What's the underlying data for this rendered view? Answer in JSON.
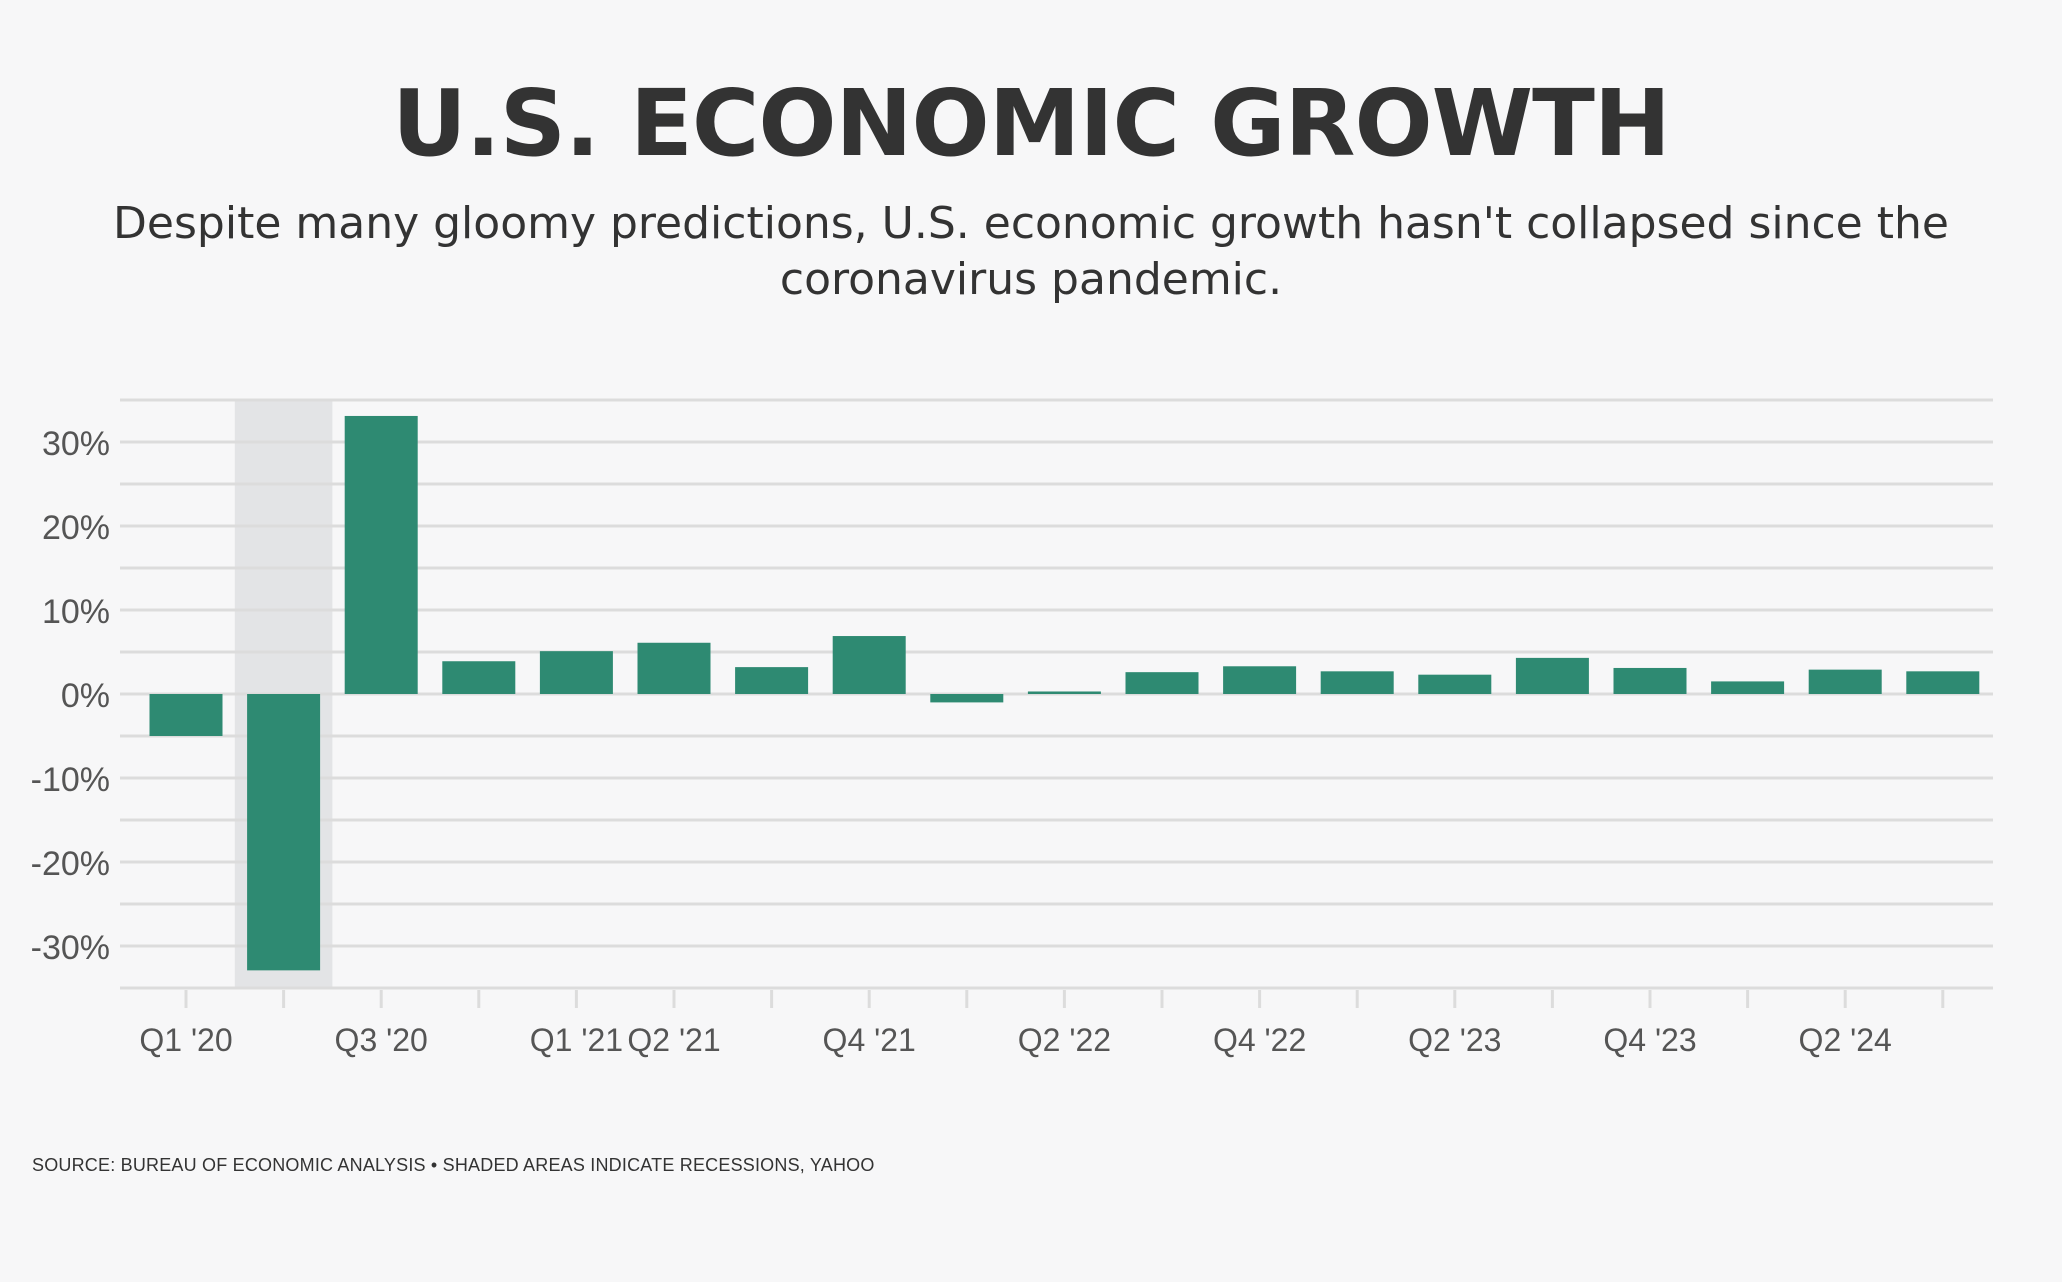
{
  "title": "U.S. ECONOMIC GROWTH",
  "subtitle": "Despite many gloomy predictions, U.S. economic growth hasn't collapsed since the coronavirus pandemic.",
  "source": "SOURCE: BUREAU OF ECONOMIC ANALYSIS • SHADED AREAS INDICATE RECESSIONS, YAHOO",
  "colors": {
    "bar": "#2e8a72",
    "recession_shade": "#e3e4e6",
    "grid": "#dcdcdc",
    "text": "#333333",
    "axis_text": "#555555"
  },
  "chart_data": {
    "type": "bar",
    "categories": [
      "Q1 '20",
      "Q2 '20",
      "Q3 '20",
      "Q4 '20",
      "Q1 '21",
      "Q2 '21",
      "Q3 '21",
      "Q4 '21",
      "Q1 '22",
      "Q2 '22",
      "Q3 '22",
      "Q4 '22",
      "Q1 '23",
      "Q2 '23",
      "Q3 '23",
      "Q4 '23",
      "Q1 '24",
      "Q2 '24",
      "Q3 '24"
    ],
    "values": [
      -5.0,
      -32.9,
      33.1,
      3.9,
      5.1,
      6.1,
      3.2,
      6.9,
      -1.0,
      0.3,
      2.6,
      3.3,
      2.7,
      2.3,
      4.3,
      3.1,
      1.5,
      2.9,
      2.7
    ],
    "tick_labels": [
      "Q1 '20",
      "",
      "Q3 '20",
      "",
      "Q1 '21",
      "Q2 '21",
      "",
      "Q4 '21",
      "",
      "Q2 '22",
      "",
      "Q4 '22",
      "",
      "Q2 '23",
      "",
      "Q4 '23",
      "",
      "Q2 '24",
      ""
    ],
    "y_ticks": [
      30,
      20,
      10,
      0,
      -10,
      -20,
      -30
    ],
    "y_tick_labels": [
      "30%",
      "20%",
      "10%",
      "0%",
      "-10%",
      "-20%",
      "-30%"
    ],
    "ylim": [
      -35,
      35
    ],
    "recession_shading": [
      {
        "from_category": "Q2 '20",
        "to_category": "Q2 '20"
      }
    ],
    "xlabel": "",
    "ylabel": "",
    "grid": true
  }
}
